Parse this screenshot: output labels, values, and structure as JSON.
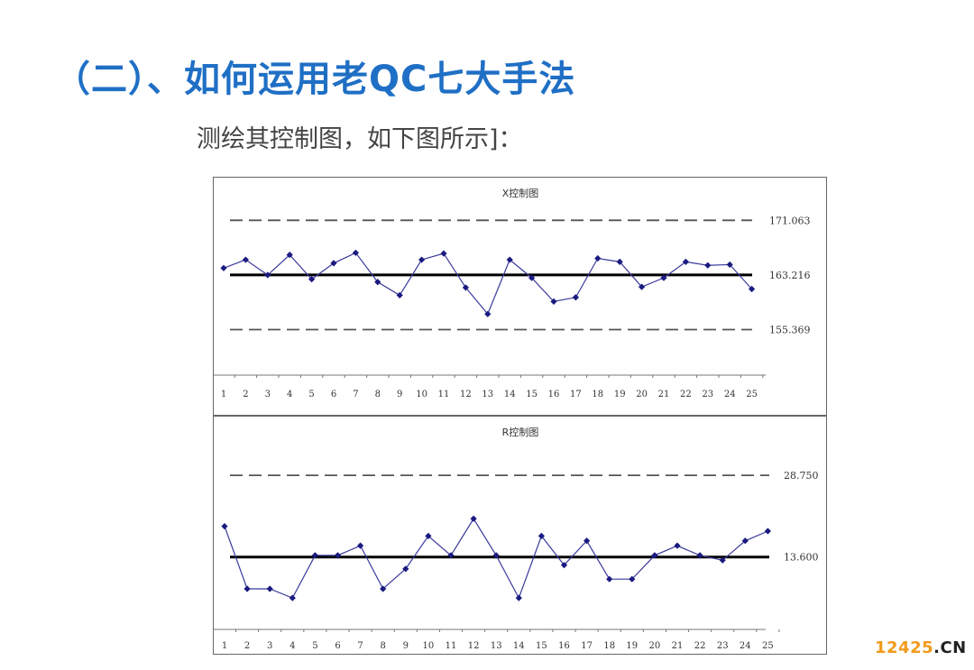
{
  "slide": {
    "title": "（二）、如何运用老QC七大手法",
    "subtitle": "测绘其控制图，如下图所示]："
  },
  "watermark": {
    "main": "12425",
    "suffix": ".CN"
  },
  "chart_data": [
    {
      "type": "line",
      "title": "X控制图",
      "categories": [
        "1",
        "2",
        "3",
        "4",
        "5",
        "6",
        "7",
        "8",
        "9",
        "10",
        "11",
        "12",
        "13",
        "14",
        "15",
        "16",
        "17",
        "18",
        "19",
        "20",
        "21",
        "22",
        "23",
        "24",
        "25"
      ],
      "series": [
        {
          "values": [
            164.2,
            165.4,
            163.2,
            166.1,
            162.6,
            164.9,
            166.4,
            162.2,
            160.3,
            165.4,
            166.3,
            161.4,
            157.6,
            165.4,
            162.8,
            159.4,
            160.0,
            165.6,
            165.1,
            161.5,
            162.8,
            165.1,
            164.6,
            164.7,
            161.2
          ]
        }
      ],
      "control_lines": [
        {
          "label": "171.063",
          "value": 171.063,
          "style": "dashed"
        },
        {
          "label": "163.216",
          "value": 163.216,
          "style": "solid"
        },
        {
          "label": "155.369",
          "value": 155.369,
          "style": "dashed"
        }
      ],
      "ylim": [
        148.7,
        174.6
      ],
      "colors": {
        "series": "#3a3a9c",
        "center": "#000000",
        "limit": "#555555"
      },
      "grid": false,
      "legend": "none"
    },
    {
      "type": "line",
      "title": "R控制图",
      "categories": [
        "1",
        "2",
        "3",
        "4",
        "5",
        "6",
        "7",
        "8",
        "9",
        "10",
        "11",
        "12",
        "13",
        "14",
        "15",
        "16",
        "17",
        "18",
        "19",
        "20",
        "21",
        "22",
        "23",
        "24",
        "25"
      ],
      "series": [
        {
          "values": [
            19.3,
            7.7,
            7.7,
            6.0,
            13.9,
            13.9,
            15.7,
            7.7,
            11.4,
            17.5,
            13.9,
            20.7,
            13.9,
            6.0,
            17.5,
            12.1,
            16.6,
            9.5,
            9.5,
            13.9,
            15.7,
            13.9,
            13.0,
            16.6,
            18.4
          ]
        }
      ],
      "control_lines": [
        {
          "label": "28.750",
          "value": 28.75,
          "style": "dashed"
        },
        {
          "label": "13.600",
          "value": 13.6,
          "style": "solid"
        }
      ],
      "ylim": [
        0,
        36.3
      ],
      "colors": {
        "series": "#3a3a9c",
        "center": "#000000",
        "limit": "#555555"
      },
      "grid": false,
      "legend": "none"
    }
  ]
}
